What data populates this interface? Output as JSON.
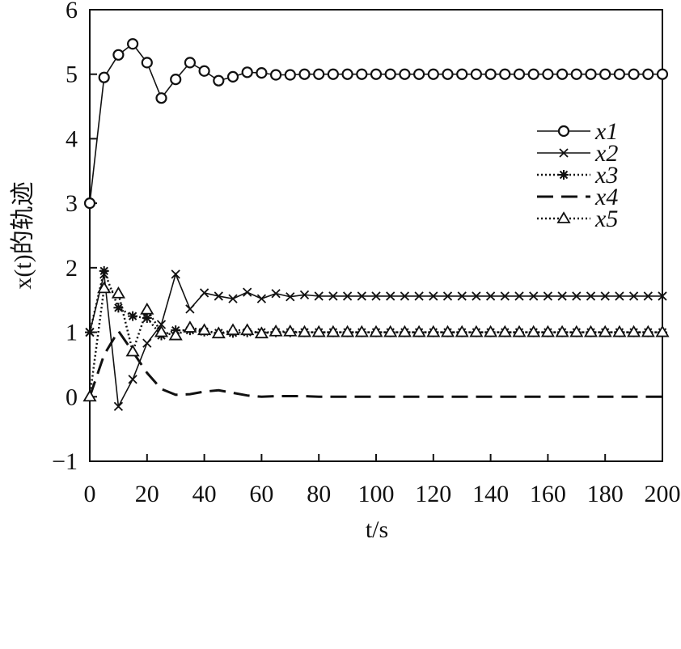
{
  "chart_data": {
    "type": "line",
    "xlabel": "t/s",
    "ylabel": "x(t)的轨迹",
    "xlim": [
      0,
      200
    ],
    "ylim": [
      -1,
      6
    ],
    "xticks": [
      0,
      20,
      40,
      60,
      80,
      100,
      120,
      140,
      160,
      180,
      200
    ],
    "yticks": [
      -1,
      0,
      1,
      2,
      3,
      4,
      5,
      6
    ],
    "grid": false,
    "legend_position": "right",
    "x": [
      0,
      5,
      10,
      15,
      20,
      25,
      30,
      35,
      40,
      45,
      50,
      55,
      60,
      65,
      70,
      75,
      80,
      85,
      90,
      95,
      100,
      105,
      110,
      115,
      120,
      125,
      130,
      135,
      140,
      145,
      150,
      155,
      160,
      165,
      170,
      175,
      180,
      185,
      190,
      195,
      200
    ],
    "series": [
      {
        "name": "x1",
        "marker": "circle",
        "line": "solid",
        "values": [
          3,
          4.95,
          5.3,
          5.47,
          5.18,
          4.63,
          4.92,
          5.18,
          5.05,
          4.9,
          4.96,
          5.03,
          5.02,
          4.99,
          4.99,
          5,
          5,
          5,
          5,
          5,
          5,
          5,
          5,
          5,
          5,
          5,
          5,
          5,
          5,
          5,
          5,
          5,
          5,
          5,
          5,
          5,
          5,
          5,
          5,
          5,
          5
        ]
      },
      {
        "name": "x2",
        "marker": "x",
        "line": "solid",
        "values": [
          1,
          1.9,
          -0.15,
          0.27,
          0.83,
          1.12,
          1.9,
          1.36,
          1.61,
          1.56,
          1.52,
          1.62,
          1.52,
          1.6,
          1.55,
          1.58,
          1.56,
          1.56,
          1.56,
          1.56,
          1.56,
          1.56,
          1.56,
          1.56,
          1.56,
          1.56,
          1.56,
          1.56,
          1.56,
          1.56,
          1.56,
          1.56,
          1.56,
          1.56,
          1.56,
          1.56,
          1.56,
          1.56,
          1.56,
          1.56,
          1.56
        ]
      },
      {
        "name": "x3",
        "marker": "asterisk",
        "line": "dotted",
        "values": [
          1,
          1.95,
          1.38,
          1.25,
          1.22,
          0.95,
          1.03,
          1.03,
          1.01,
          0.99,
          0.99,
          1,
          1,
          1,
          1,
          1,
          1,
          1,
          1,
          1,
          1,
          1,
          1,
          1,
          1,
          1,
          1,
          1,
          1,
          1,
          1,
          1,
          1,
          1,
          1,
          1,
          1,
          1,
          1,
          1,
          1
        ]
      },
      {
        "name": "x4",
        "marker": "none",
        "line": "dashed",
        "values": [
          0,
          0.65,
          1.02,
          0.7,
          0.37,
          0.12,
          0.03,
          0.04,
          0.08,
          0.1,
          0.06,
          0.02,
          0,
          0.01,
          0.01,
          0.01,
          0,
          0,
          0,
          0,
          0,
          0,
          0,
          0,
          0,
          0,
          0,
          0,
          0,
          0,
          0,
          0,
          0,
          0,
          0,
          0,
          0,
          0,
          0,
          0,
          0
        ]
      },
      {
        "name": "x5",
        "marker": "triangle",
        "line": "dotted",
        "values": [
          0,
          1.68,
          1.6,
          0.7,
          1.35,
          1,
          0.95,
          1.07,
          1.03,
          0.98,
          1.03,
          1.03,
          0.98,
          1.01,
          1.01,
          1,
          1,
          1,
          1,
          1,
          1,
          1,
          1,
          1,
          1,
          1,
          1,
          1,
          1,
          1,
          1,
          1,
          1,
          1,
          1,
          1,
          1,
          1,
          1,
          1,
          1
        ]
      }
    ]
  }
}
